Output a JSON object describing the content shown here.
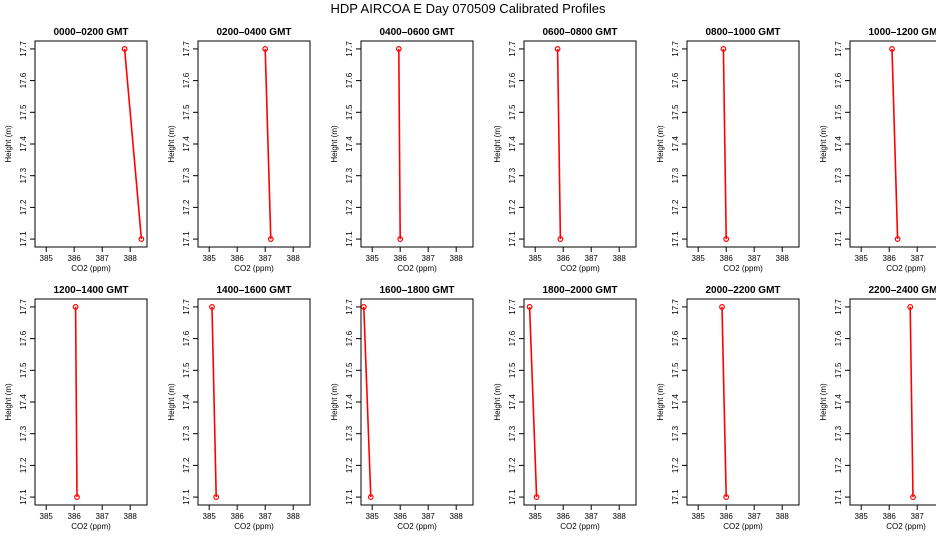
{
  "figure": {
    "title": "HDP AIRCOA E  Day 070509  Calibrated Profiles"
  },
  "style": {
    "series_color": "#ff0000",
    "axis_color": "#000000"
  },
  "chart_data": [
    {
      "type": "line",
      "title": "0000–0200 GMT",
      "xlabel": "CO2 (ppm)",
      "ylabel": "Height (m)",
      "xlim": [
        384.6,
        388.6
      ],
      "ylim": [
        17.075,
        17.725
      ],
      "xticks": [
        "385",
        "386",
        "387",
        "388"
      ],
      "yticks": [
        "17.1",
        "17.2",
        "17.3",
        "17.4",
        "17.5",
        "17.6",
        "17.7"
      ],
      "series": [
        {
          "x": [
            387.8,
            388.4
          ],
          "y": [
            17.7,
            17.1
          ]
        }
      ]
    },
    {
      "type": "line",
      "title": "0200–0400 GMT",
      "xlabel": "CO2 (ppm)",
      "ylabel": "Height (m)",
      "xlim": [
        384.6,
        388.6
      ],
      "ylim": [
        17.075,
        17.725
      ],
      "xticks": [
        "385",
        "386",
        "387",
        "388"
      ],
      "yticks": [
        "17.1",
        "17.2",
        "17.3",
        "17.4",
        "17.5",
        "17.6",
        "17.7"
      ],
      "series": [
        {
          "x": [
            387.0,
            387.2
          ],
          "y": [
            17.7,
            17.1
          ]
        }
      ]
    },
    {
      "type": "line",
      "title": "0400–0600 GMT",
      "xlabel": "CO2 (ppm)",
      "ylabel": "Height (m)",
      "xlim": [
        384.6,
        388.6
      ],
      "ylim": [
        17.075,
        17.725
      ],
      "xticks": [
        "385",
        "386",
        "387",
        "388"
      ],
      "yticks": [
        "17.1",
        "17.2",
        "17.3",
        "17.4",
        "17.5",
        "17.6",
        "17.7"
      ],
      "series": [
        {
          "x": [
            385.95,
            386.0
          ],
          "y": [
            17.7,
            17.1
          ]
        }
      ]
    },
    {
      "type": "line",
      "title": "0600–0800 GMT",
      "xlabel": "CO2 (ppm)",
      "ylabel": "Height (m)",
      "xlim": [
        384.6,
        388.6
      ],
      "ylim": [
        17.075,
        17.725
      ],
      "xticks": [
        "385",
        "386",
        "387",
        "388"
      ],
      "yticks": [
        "17.1",
        "17.2",
        "17.3",
        "17.4",
        "17.5",
        "17.6",
        "17.7"
      ],
      "series": [
        {
          "x": [
            385.8,
            385.9
          ],
          "y": [
            17.7,
            17.1
          ]
        }
      ]
    },
    {
      "type": "line",
      "title": "0800–1000 GMT",
      "xlabel": "CO2 (ppm)",
      "ylabel": "Height (m)",
      "xlim": [
        384.6,
        388.6
      ],
      "ylim": [
        17.075,
        17.725
      ],
      "xticks": [
        "385",
        "386",
        "387",
        "388"
      ],
      "yticks": [
        "17.1",
        "17.2",
        "17.3",
        "17.4",
        "17.5",
        "17.6",
        "17.7"
      ],
      "series": [
        {
          "x": [
            385.9,
            386.0
          ],
          "y": [
            17.7,
            17.1
          ]
        }
      ]
    },
    {
      "type": "line",
      "title": "1000–1200 GMT",
      "xlabel": "CO2 (ppm)",
      "ylabel": "Height (m)",
      "xlim": [
        384.6,
        388.6
      ],
      "ylim": [
        17.075,
        17.725
      ],
      "xticks": [
        "385",
        "386",
        "387",
        "388"
      ],
      "yticks": [
        "17.1",
        "17.2",
        "17.3",
        "17.4",
        "17.5",
        "17.6",
        "17.7"
      ],
      "series": [
        {
          "x": [
            386.1,
            386.3
          ],
          "y": [
            17.7,
            17.1
          ]
        }
      ]
    },
    {
      "type": "line",
      "title": "1200–1400 GMT",
      "xlabel": "CO2 (ppm)",
      "ylabel": "Height (m)",
      "xlim": [
        384.6,
        388.6
      ],
      "ylim": [
        17.075,
        17.725
      ],
      "xticks": [
        "385",
        "386",
        "387",
        "388"
      ],
      "yticks": [
        "17.1",
        "17.2",
        "17.3",
        "17.4",
        "17.5",
        "17.6",
        "17.7"
      ],
      "series": [
        {
          "x": [
            386.05,
            386.1
          ],
          "y": [
            17.7,
            17.1
          ]
        }
      ]
    },
    {
      "type": "line",
      "title": "1400–1600 GMT",
      "xlabel": "CO2 (ppm)",
      "ylabel": "Height (m)",
      "xlim": [
        384.6,
        388.6
      ],
      "ylim": [
        17.075,
        17.725
      ],
      "xticks": [
        "385",
        "386",
        "387",
        "388"
      ],
      "yticks": [
        "17.1",
        "17.2",
        "17.3",
        "17.4",
        "17.5",
        "17.6",
        "17.7"
      ],
      "series": [
        {
          "x": [
            385.1,
            385.25
          ],
          "y": [
            17.7,
            17.1
          ]
        }
      ]
    },
    {
      "type": "line",
      "title": "1600–1800 GMT",
      "xlabel": "CO2 (ppm)",
      "ylabel": "Height (m)",
      "xlim": [
        384.6,
        388.6
      ],
      "ylim": [
        17.075,
        17.725
      ],
      "xticks": [
        "385",
        "386",
        "387",
        "388"
      ],
      "yticks": [
        "17.1",
        "17.2",
        "17.3",
        "17.4",
        "17.5",
        "17.6",
        "17.7"
      ],
      "series": [
        {
          "x": [
            384.7,
            384.95
          ],
          "y": [
            17.7,
            17.1
          ]
        }
      ]
    },
    {
      "type": "line",
      "title": "1800–2000 GMT",
      "xlabel": "CO2 (ppm)",
      "ylabel": "Height (m)",
      "xlim": [
        384.6,
        388.6
      ],
      "ylim": [
        17.075,
        17.725
      ],
      "xticks": [
        "385",
        "386",
        "387",
        "388"
      ],
      "yticks": [
        "17.1",
        "17.2",
        "17.3",
        "17.4",
        "17.5",
        "17.6",
        "17.7"
      ],
      "series": [
        {
          "x": [
            384.8,
            385.05
          ],
          "y": [
            17.7,
            17.1
          ]
        }
      ]
    },
    {
      "type": "line",
      "title": "2000–2200 GMT",
      "xlabel": "CO2 (ppm)",
      "ylabel": "Height (m)",
      "xlim": [
        384.6,
        388.6
      ],
      "ylim": [
        17.075,
        17.725
      ],
      "xticks": [
        "385",
        "386",
        "387",
        "388"
      ],
      "yticks": [
        "17.1",
        "17.2",
        "17.3",
        "17.4",
        "17.5",
        "17.6",
        "17.7"
      ],
      "series": [
        {
          "x": [
            385.85,
            386.0
          ],
          "y": [
            17.7,
            17.1
          ]
        }
      ]
    },
    {
      "type": "line",
      "title": "2200–2400 GMT",
      "xlabel": "CO2 (ppm)",
      "ylabel": "Height (m)",
      "xlim": [
        384.6,
        388.6
      ],
      "ylim": [
        17.075,
        17.725
      ],
      "xticks": [
        "385",
        "386",
        "387",
        "388"
      ],
      "yticks": [
        "17.1",
        "17.2",
        "17.3",
        "17.4",
        "17.5",
        "17.6",
        "17.7"
      ],
      "series": [
        {
          "x": [
            386.75,
            386.85
          ],
          "y": [
            17.7,
            17.1
          ]
        }
      ]
    }
  ]
}
